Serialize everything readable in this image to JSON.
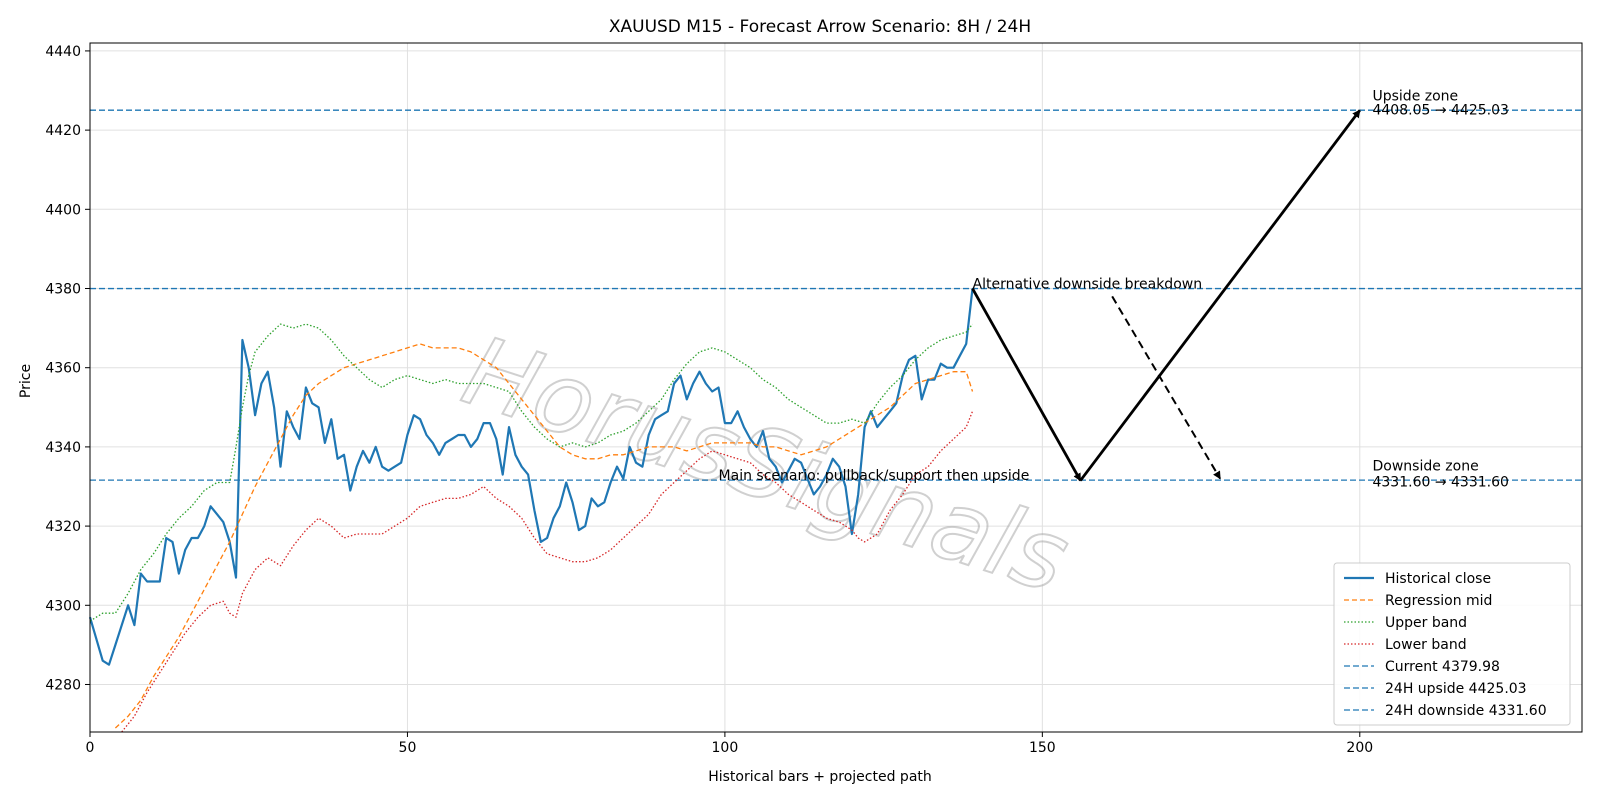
{
  "chart_data": {
    "type": "line",
    "title": "XAUUSD M15 - Forecast Arrow Scenario: 8H / 24H",
    "xlabel": "Historical bars + projected path",
    "ylabel": "Price",
    "xlim": [
      0,
      235
    ],
    "ylim": [
      4268,
      4442
    ],
    "xticks": [
      0,
      50,
      100,
      150,
      200
    ],
    "yticks": [
      4280,
      4300,
      4320,
      4340,
      4360,
      4380,
      4400,
      4420,
      4440
    ],
    "grid": true,
    "legend_position": "lower-right",
    "watermark": "HorusSignals",
    "colors": {
      "historical": "#1f77b4",
      "regression": "#ff7f0e",
      "upper": "#2ca02c",
      "lower": "#d62728",
      "hline": "#1f77b4",
      "arrow": "#000000"
    },
    "series": [
      {
        "name": "Historical close",
        "style": "solid",
        "x": [
          0,
          2,
          3,
          4,
          6,
          7,
          8,
          9,
          11,
          12,
          13,
          14,
          15,
          16,
          17,
          18,
          19,
          20,
          21,
          22,
          23,
          24,
          25,
          26,
          27,
          28,
          29,
          30,
          31,
          32,
          33,
          34,
          35,
          36,
          37,
          38,
          39,
          40,
          41,
          42,
          43,
          44,
          45,
          46,
          47,
          48,
          49,
          50,
          51,
          52,
          53,
          54,
          55,
          56,
          57,
          58,
          59,
          60,
          61,
          62,
          63,
          64,
          65,
          66,
          67,
          68,
          69,
          70,
          71,
          72,
          73,
          74,
          75,
          76,
          77,
          78,
          79,
          80,
          81,
          82,
          83,
          84,
          85,
          86,
          87,
          88,
          89,
          90,
          91,
          92,
          93,
          94,
          95,
          96,
          97,
          98,
          99,
          100,
          101,
          102,
          103,
          104,
          105,
          106,
          107,
          108,
          109,
          110,
          111,
          112,
          113,
          114,
          115,
          116,
          117,
          118,
          119,
          120,
          121,
          122,
          123,
          124,
          125,
          126,
          127,
          128,
          129,
          130,
          131,
          132,
          133,
          134,
          135,
          136,
          137,
          138,
          139
        ],
        "values": [
          4297,
          4286,
          4285,
          4290,
          4300,
          4295,
          4308,
          4306,
          4306,
          4317,
          4316,
          4308,
          4314,
          4317,
          4317,
          4320,
          4325,
          4323,
          4321,
          4316,
          4307,
          4367,
          4360,
          4348,
          4356,
          4359,
          4350,
          4335,
          4349,
          4345,
          4342,
          4355,
          4351,
          4350,
          4341,
          4347,
          4337,
          4338,
          4329,
          4335,
          4339,
          4336,
          4340,
          4335,
          4334,
          4335,
          4336,
          4343,
          4348,
          4347,
          4343,
          4341,
          4338,
          4341,
          4342,
          4343,
          4343,
          4340,
          4342,
          4346,
          4346,
          4342,
          4333,
          4345,
          4338,
          4335,
          4333,
          4324,
          4316,
          4317,
          4322,
          4325,
          4331,
          4326,
          4319,
          4320,
          4327,
          4325,
          4326,
          4331,
          4335,
          4332,
          4340,
          4336,
          4335,
          4343,
          4347,
          4348,
          4349,
          4356,
          4358,
          4352,
          4356,
          4359,
          4356,
          4354,
          4355,
          4346,
          4346,
          4349,
          4345,
          4342,
          4340,
          4344,
          4337,
          4335,
          4331,
          4334,
          4337,
          4336,
          4332,
          4328,
          4330,
          4333,
          4337,
          4335,
          4330,
          4318,
          4328,
          4345,
          4349,
          4345,
          4347,
          4349,
          4351,
          4358,
          4362,
          4363,
          4352,
          4357,
          4357,
          4361,
          4360,
          4360,
          4363,
          4366,
          4380
        ]
      },
      {
        "name": "Regression mid",
        "style": "dashed",
        "x": [
          4,
          6,
          8,
          10,
          12,
          14,
          16,
          18,
          20,
          22,
          24,
          26,
          28,
          30,
          32,
          34,
          36,
          38,
          40,
          42,
          44,
          46,
          48,
          50,
          52,
          54,
          56,
          58,
          60,
          62,
          64,
          66,
          68,
          70,
          72,
          74,
          76,
          78,
          80,
          82,
          84,
          86,
          88,
          90,
          92,
          94,
          96,
          98,
          100,
          102,
          104,
          106,
          108,
          110,
          112,
          114,
          116,
          118,
          120,
          122,
          124,
          126,
          128,
          130,
          132,
          134,
          136,
          138,
          139
        ],
        "values": [
          4269,
          4272,
          4276,
          4282,
          4287,
          4292,
          4298,
          4304,
          4310,
          4316,
          4323,
          4330,
          4336,
          4342,
          4348,
          4353,
          4356,
          4358,
          4360,
          4361,
          4362,
          4363,
          4364,
          4365,
          4366,
          4365,
          4365,
          4365,
          4364,
          4362,
          4360,
          4356,
          4352,
          4348,
          4344,
          4340,
          4338,
          4337,
          4337,
          4338,
          4338,
          4339,
          4340,
          4340,
          4340,
          4339,
          4340,
          4341,
          4341,
          4341,
          4341,
          4340,
          4340,
          4339,
          4338,
          4339,
          4340,
          4342,
          4344,
          4346,
          4348,
          4350,
          4353,
          4356,
          4357,
          4358,
          4359,
          4359,
          4354
        ]
      },
      {
        "name": "Upper band",
        "style": "dotted",
        "x": [
          0,
          2,
          4,
          6,
          8,
          10,
          12,
          14,
          16,
          18,
          20,
          22,
          23,
          24,
          25,
          26,
          28,
          30,
          32,
          34,
          36,
          38,
          40,
          42,
          44,
          46,
          48,
          50,
          52,
          54,
          56,
          58,
          60,
          62,
          64,
          66,
          68,
          70,
          72,
          74,
          76,
          78,
          80,
          82,
          84,
          86,
          88,
          90,
          92,
          94,
          96,
          98,
          100,
          102,
          104,
          106,
          108,
          110,
          112,
          114,
          116,
          118,
          120,
          122,
          124,
          126,
          128,
          130,
          132,
          134,
          136,
          138,
          139
        ],
        "values": [
          4296,
          4298,
          4298,
          4303,
          4309,
          4313,
          4318,
          4322,
          4325,
          4329,
          4331,
          4331,
          4340,
          4350,
          4358,
          4364,
          4368,
          4371,
          4370,
          4371,
          4370,
          4367,
          4363,
          4360,
          4357,
          4355,
          4357,
          4358,
          4357,
          4356,
          4357,
          4356,
          4356,
          4356,
          4355,
          4354,
          4349,
          4345,
          4342,
          4340,
          4341,
          4340,
          4341,
          4343,
          4344,
          4346,
          4349,
          4352,
          4357,
          4361,
          4364,
          4365,
          4364,
          4362,
          4360,
          4357,
          4355,
          4352,
          4350,
          4348,
          4346,
          4346,
          4347,
          4346,
          4351,
          4355,
          4358,
          4362,
          4365,
          4367,
          4368,
          4369,
          4371
        ]
      },
      {
        "name": "Lower band",
        "style": "dotted",
        "x": [
          5,
          7,
          9,
          11,
          13,
          15,
          17,
          19,
          21,
          22,
          23,
          24,
          26,
          28,
          30,
          32,
          34,
          36,
          38,
          40,
          42,
          44,
          46,
          48,
          50,
          52,
          54,
          56,
          58,
          60,
          62,
          64,
          66,
          68,
          70,
          72,
          74,
          76,
          78,
          80,
          82,
          84,
          86,
          88,
          90,
          92,
          94,
          96,
          98,
          100,
          102,
          104,
          106,
          108,
          110,
          112,
          114,
          116,
          118,
          120,
          121,
          122,
          124,
          126,
          128,
          130,
          132,
          134,
          136,
          138,
          139
        ],
        "values": [
          4268,
          4272,
          4278,
          4283,
          4288,
          4293,
          4297,
          4300,
          4301,
          4298,
          4297,
          4303,
          4309,
          4312,
          4310,
          4315,
          4319,
          4322,
          4320,
          4317,
          4318,
          4318,
          4318,
          4320,
          4322,
          4325,
          4326,
          4327,
          4327,
          4328,
          4330,
          4327,
          4325,
          4322,
          4317,
          4313,
          4312,
          4311,
          4311,
          4312,
          4314,
          4317,
          4320,
          4323,
          4328,
          4331,
          4334,
          4337,
          4339,
          4338,
          4337,
          4336,
          4333,
          4331,
          4328,
          4326,
          4324,
          4322,
          4321,
          4319,
          4317,
          4316,
          4318,
          4324,
          4328,
          4333,
          4335,
          4339,
          4342,
          4345,
          4349
        ]
      }
    ],
    "hlines": [
      {
        "name": "Current 4379.98",
        "y": 4379.98
      },
      {
        "name": "24H upside 4425.03",
        "y": 4425.03
      },
      {
        "name": "24H downside 4331.60",
        "y": 4331.6
      }
    ],
    "arrows": [
      {
        "from": [
          139,
          4380
        ],
        "to": [
          156,
          4331.5
        ],
        "style": "solid"
      },
      {
        "from": [
          156,
          4331.5
        ],
        "to": [
          200,
          4425
        ],
        "style": "solid"
      },
      {
        "from": [
          161,
          4378
        ],
        "to": [
          178,
          4332
        ],
        "style": "dashed"
      }
    ],
    "annotations": [
      {
        "text": "Alternative downside breakdown",
        "x": 139,
        "y": 4380
      },
      {
        "text": "Main scenario: pullback/support then upside",
        "x": 99,
        "y": 4331.6
      },
      {
        "text": "Upside zone",
        "x": 202,
        "y": 4427.5
      },
      {
        "text": "4408.05 → 4425.03",
        "x": 202,
        "y": 4424
      },
      {
        "text": "Downside zone",
        "x": 202,
        "y": 4334
      },
      {
        "text": "4331.60 → 4331.60",
        "x": 202,
        "y": 4330
      }
    ]
  }
}
